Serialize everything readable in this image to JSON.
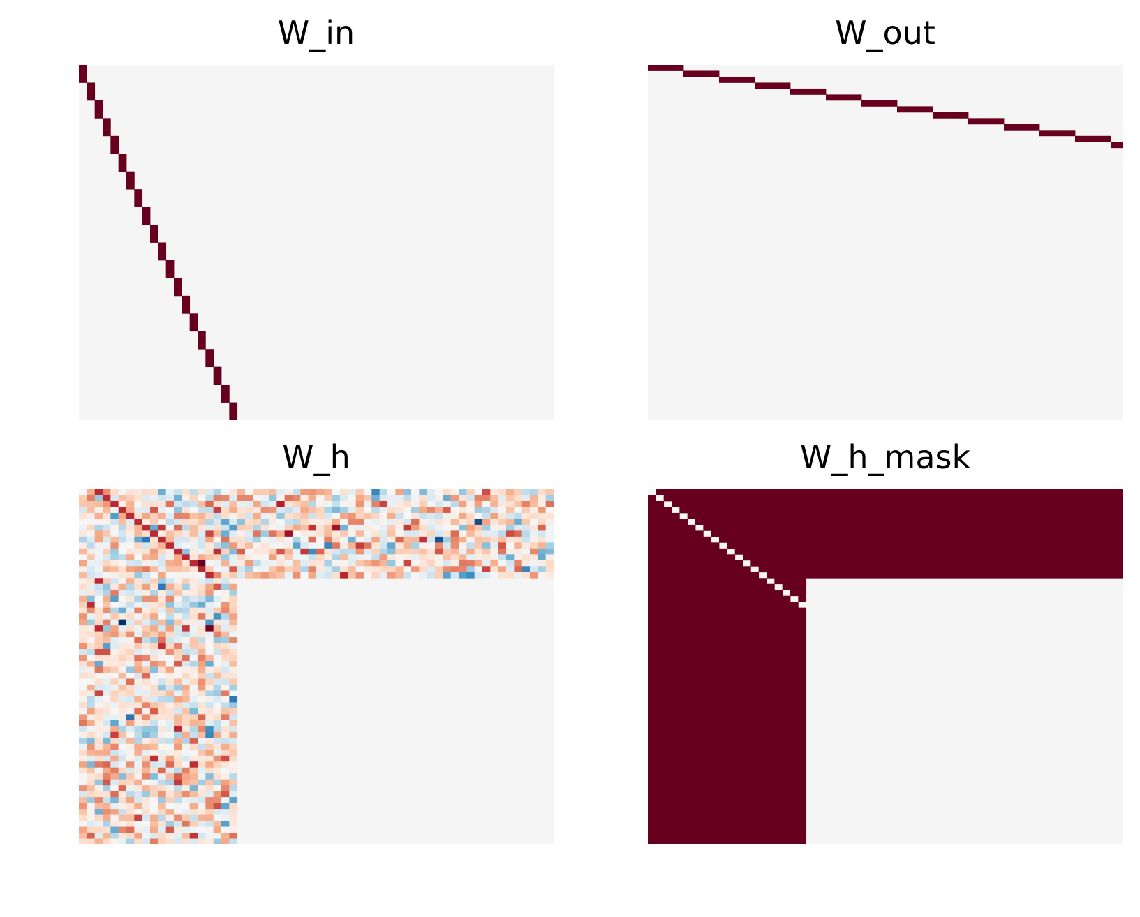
{
  "colormap": {
    "name": "RdBu_r",
    "stops": [
      "#053061",
      "#2166ac",
      "#4393c3",
      "#92c5de",
      "#d1e5f0",
      "#f7f7f7",
      "#fddbc7",
      "#f4a582",
      "#d6604d",
      "#b2182b",
      "#67001f"
    ],
    "zero_color": "#f5f5f5",
    "max_color": "#67001f"
  },
  "chart_data": [
    {
      "type": "heatmap",
      "title": "W_in",
      "rows": 40,
      "cols": 60,
      "nonzero_rule": "identity over first 20 inputs: each input maps to 2 consecutive units",
      "nonzero_cells": [
        [
          0,
          0
        ],
        [
          1,
          0
        ],
        [
          2,
          1
        ],
        [
          3,
          1
        ],
        [
          4,
          2
        ],
        [
          5,
          2
        ],
        [
          6,
          3
        ],
        [
          7,
          3
        ],
        [
          8,
          4
        ],
        [
          9,
          4
        ],
        [
          10,
          5
        ],
        [
          11,
          5
        ],
        [
          12,
          6
        ],
        [
          13,
          6
        ],
        [
          14,
          7
        ],
        [
          15,
          7
        ],
        [
          16,
          8
        ],
        [
          17,
          8
        ],
        [
          18,
          9
        ],
        [
          19,
          9
        ],
        [
          20,
          10
        ],
        [
          21,
          10
        ],
        [
          22,
          11
        ],
        [
          23,
          11
        ],
        [
          24,
          12
        ],
        [
          25,
          12
        ],
        [
          26,
          13
        ],
        [
          27,
          13
        ],
        [
          28,
          14
        ],
        [
          29,
          14
        ],
        [
          30,
          15
        ],
        [
          31,
          15
        ],
        [
          32,
          16
        ],
        [
          33,
          16
        ],
        [
          34,
          17
        ],
        [
          35,
          17
        ],
        [
          36,
          18
        ],
        [
          37,
          18
        ],
        [
          38,
          19
        ],
        [
          39,
          19
        ]
      ],
      "nonzero_value": 1,
      "background_value": 0,
      "axes_visible": false
    },
    {
      "type": "heatmap",
      "title": "W_out",
      "rows": 60,
      "cols": 40,
      "nonzero_cells": [
        [
          0,
          0
        ],
        [
          0,
          1
        ],
        [
          0,
          2
        ],
        [
          1,
          3
        ],
        [
          1,
          4
        ],
        [
          1,
          5
        ],
        [
          2,
          6
        ],
        [
          2,
          7
        ],
        [
          2,
          8
        ],
        [
          3,
          9
        ],
        [
          3,
          10
        ],
        [
          3,
          11
        ],
        [
          4,
          12
        ],
        [
          4,
          13
        ],
        [
          4,
          14
        ],
        [
          5,
          15
        ],
        [
          5,
          16
        ],
        [
          5,
          17
        ],
        [
          6,
          18
        ],
        [
          6,
          19
        ],
        [
          6,
          20
        ],
        [
          7,
          21
        ],
        [
          7,
          22
        ],
        [
          7,
          23
        ],
        [
          8,
          24
        ],
        [
          8,
          25
        ],
        [
          8,
          26
        ],
        [
          9,
          27
        ],
        [
          9,
          28
        ],
        [
          9,
          29
        ],
        [
          10,
          30
        ],
        [
          10,
          31
        ],
        [
          10,
          32
        ],
        [
          11,
          33
        ],
        [
          11,
          34
        ],
        [
          11,
          35
        ],
        [
          12,
          36
        ],
        [
          12,
          37
        ],
        [
          12,
          38
        ],
        [
          13,
          39
        ]
      ],
      "nonzero_value": 1,
      "background_value": 0,
      "axes_visible": false
    },
    {
      "type": "heatmap",
      "title": "W_h",
      "rows": 60,
      "cols": 60,
      "block_rows_nonzero": 15,
      "block_cols_nonzero": 20,
      "value_range": [
        -1,
        1
      ],
      "background_value": 0,
      "description_of_fill": "random weights in rows 0-14 (all columns) and columns 0-19 (all rows); zero elsewhere",
      "axes_visible": false
    },
    {
      "type": "heatmap",
      "title": "W_h_mask",
      "rows": 60,
      "cols": 60,
      "block_rows_nonzero": 15,
      "block_cols_nonzero": 20,
      "diagonal_zero": true,
      "nonzero_value": 1,
      "background_value": 0,
      "axes_visible": false
    }
  ]
}
